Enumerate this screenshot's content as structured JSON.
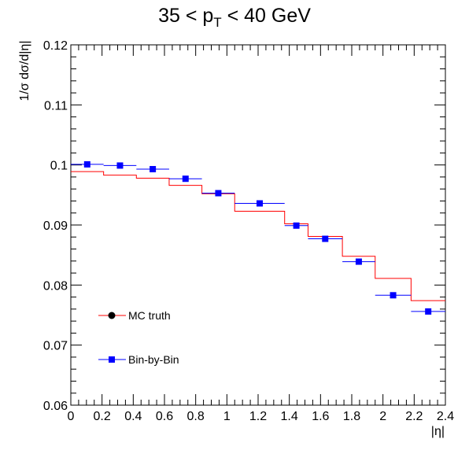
{
  "chart_data": {
    "type": "step-histogram-with-markers",
    "title": {
      "prefix": "35 < p",
      "subscript": "T",
      "suffix": " < 40 GeV"
    },
    "xlabel": "|η|",
    "ylabel": "1/σ dσ/d|η|",
    "xlim": [
      0,
      2.4
    ],
    "ylim": [
      0.06,
      0.12
    ],
    "x_ticks": [
      "0",
      "0.2",
      "0.4",
      "0.6",
      "0.8",
      "1",
      "1.2",
      "1.4",
      "1.6",
      "1.8",
      "2",
      "2.2",
      "2.4"
    ],
    "y_ticks": [
      "0.06",
      "0.07",
      "0.08",
      "0.09",
      "0.1",
      "0.11",
      "0.12"
    ],
    "grid": false,
    "bin_edges": [
      0,
      0.21,
      0.42,
      0.63,
      0.84,
      1.05,
      1.37,
      1.52,
      1.74,
      1.95,
      2.18,
      2.4
    ],
    "series": [
      {
        "name": "MC truth",
        "style": "step",
        "marker": "circle",
        "color": "#ff0000",
        "values": [
          0.0989,
          0.0983,
          0.0978,
          0.0966,
          0.0952,
          0.0923,
          0.0902,
          0.0881,
          0.0848,
          0.0811,
          0.0774
        ]
      },
      {
        "name": "Bin-by-Bin",
        "style": "markers",
        "marker": "square",
        "color": "#0000ff",
        "values": [
          0.1001,
          0.0999,
          0.0993,
          0.0977,
          0.0953,
          0.0936,
          0.0899,
          0.0877,
          0.0839,
          0.0783,
          0.0756
        ]
      }
    ],
    "legend": {
      "position": "bottom-left",
      "entries": [
        "MC truth",
        "Bin-by-Bin"
      ]
    }
  }
}
